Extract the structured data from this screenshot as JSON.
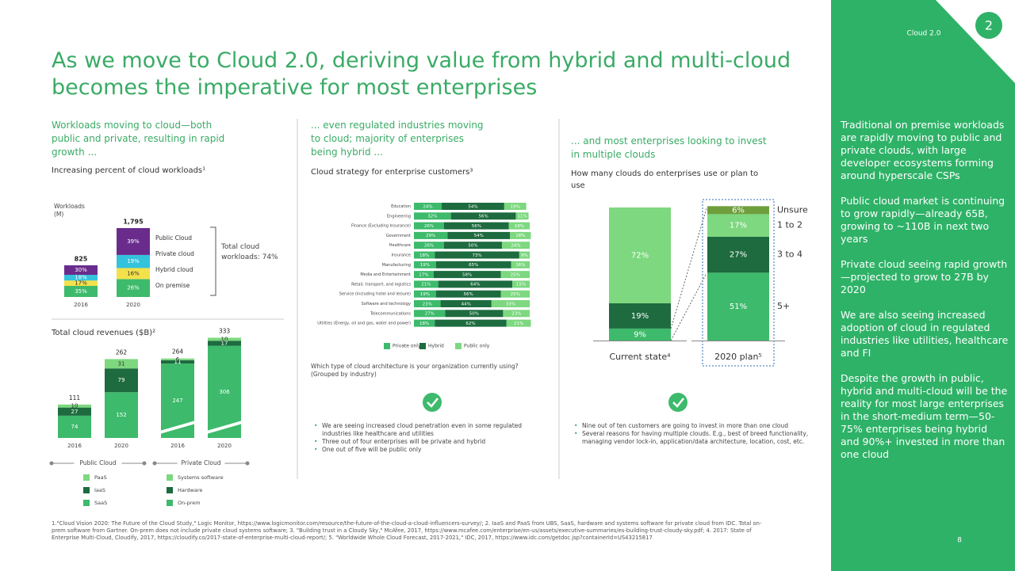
{
  "header": {
    "title": "As we move to Cloud 2.0, deriving value from hybrid and multi-cloud becomes the imperative for most enterprises",
    "section": "Cloud 2.0",
    "badge": "2",
    "page_number": "8"
  },
  "panel1": {
    "heading": "Workloads moving to cloud—both public and private, resulting in rapid growth ...",
    "subheading": "Increasing percent of cloud workloads¹",
    "workloads": {
      "axis_label": "Workloads (M)",
      "categories": [
        "2016",
        "2020"
      ],
      "totals": [
        825,
        1795
      ],
      "total_labels": [
        "825",
        "1,795"
      ],
      "series": [
        {
          "name": "On premise",
          "color": "#3dba6b",
          "values": [
            35,
            26
          ],
          "value_labels": [
            "35%",
            "26%"
          ]
        },
        {
          "name": "Hybrid cloud",
          "color": "#f3e14b",
          "values": [
            17,
            16
          ],
          "value_labels": [
            "17%",
            "16%"
          ]
        },
        {
          "name": "Private cloud",
          "color": "#33c3dc",
          "values": [
            18,
            19
          ],
          "value_labels": [
            "18%",
            "19%"
          ]
        },
        {
          "name": "Public Cloud",
          "color": "#6a2c8c",
          "values": [
            30,
            39
          ],
          "value_labels": [
            "30%",
            "39%"
          ]
        }
      ],
      "bracket_label": "Total cloud workloads: 74%"
    },
    "revenues": {
      "title": "Total cloud revenues ($B)²",
      "groups": [
        {
          "name": "Public Cloud",
          "categories": [
            "2016",
            "2020"
          ],
          "totals": [
            111,
            262
          ],
          "series": [
            {
              "name": "SaaS",
              "color": "#3dba6b",
              "values": [
                74,
                152
              ]
            },
            {
              "name": "IaaS",
              "color": "#1d6b3f",
              "values": [
                27,
                79
              ]
            },
            {
              "name": "PaaS",
              "color": "#7dd87f",
              "values": [
                10,
                31
              ]
            }
          ]
        },
        {
          "name": "Private Cloud",
          "categories": [
            "2016",
            "2020"
          ],
          "totals": [
            264,
            333
          ],
          "series": [
            {
              "name": "On-prem",
              "color": "#3dba6b",
              "values": [
                247,
                306
              ]
            },
            {
              "name": "Hardware",
              "color": "#1d6b3f",
              "values": [
                11,
                17
              ]
            },
            {
              "name": "Systems software",
              "color": "#7dd87f",
              "values": [
                6,
                10
              ]
            }
          ]
        }
      ]
    }
  },
  "panel2": {
    "heading": "... even regulated industries moving to cloud; majority of enterprises being hybrid ...",
    "subheading": "Cloud strategy for enterprise customers³",
    "chart": {
      "categories": [
        "Education",
        "Engineering",
        "Finance (Excluding Insurance)",
        "Government",
        "Healthcare",
        "Insurance",
        "Manufacturing",
        "Media and Entertainment",
        "Retail, transport, and logistics",
        "Service (including hotel and leisure)",
        "Software and technology",
        "Telecommunications",
        "Utilities (Energy, oil and gas, water and power)"
      ],
      "series": [
        {
          "name": "Private only",
          "color": "#3dba6b",
          "values": [
            24,
            32,
            26,
            29,
            26,
            18,
            19,
            17,
            21,
            19,
            23,
            27,
            18
          ],
          "value_labels": [
            "24%",
            "32%",
            "26%",
            "29%",
            "26%",
            "18%",
            "19%",
            "17%",
            "21%",
            "19%",
            "23%",
            "27%",
            "18%"
          ]
        },
        {
          "name": "Hybrid",
          "color": "#1d6b3f",
          "values": [
            54,
            56,
            56,
            54,
            50,
            73,
            65,
            58,
            64,
            56,
            44,
            50,
            62
          ],
          "value_labels": [
            "54%",
            "56%",
            "56%",
            "54%",
            "50%",
            "73%",
            "65%",
            "58%",
            "64%",
            "56%",
            "44%",
            "50%",
            "62%"
          ]
        },
        {
          "name": "Public only",
          "color": "#7dd87f",
          "values": [
            19,
            11,
            18,
            18,
            24,
            9,
            16,
            25,
            15,
            25,
            33,
            23,
            21
          ],
          "value_labels": [
            "19%",
            "11%",
            "18%",
            "18%",
            "24%",
            "9%",
            "16%",
            "25%",
            "15%",
            "25%",
            "33%",
            "23%",
            "21%"
          ]
        }
      ]
    },
    "question": "Which type of cloud architecture is your organization currently using? (Grouped by industry)",
    "bullets": [
      "We are seeing increased cloud penetration even in some regulated industries like healthcare and utilities",
      "Three out of four enterprises will be private and hybrid",
      "One out of five will be public only"
    ]
  },
  "panel3": {
    "heading": "... and most enterprises looking to invest in multiple clouds",
    "subheading": "How many clouds do enterprises use or plan to use",
    "chart": {
      "categories": [
        "Current state⁴",
        "2020 plan⁵"
      ],
      "series": [
        {
          "name": "5+",
          "color": "#3dba6b",
          "values": [
            9,
            51
          ],
          "value_labels": [
            "9%",
            "51%"
          ]
        },
        {
          "name": "3 to 4",
          "color": "#1d6b3f",
          "values": [
            19,
            27
          ],
          "value_labels": [
            "19%",
            "27%"
          ]
        },
        {
          "name": "1 to 2",
          "color": "#7dd87f",
          "values": [
            72,
            17
          ],
          "value_labels": [
            "72%",
            "17%"
          ]
        },
        {
          "name": "Unsure",
          "color": "#6f9e3c",
          "values": [
            null,
            6
          ],
          "value_labels": [
            null,
            "6%"
          ]
        }
      ]
    },
    "bullets": [
      "Nine out of ten customers are going to invest in more than one cloud",
      "Several reasons for having multiple clouds. E.g., best of breed functionality, managing vendor lock-in, application/data architecture, location, cost, etc."
    ]
  },
  "sidebar": {
    "paragraphs": [
      "Traditional on premise workloads are rapidly moving to public and private clouds, with large developer ecosystems forming around hyperscale CSPs",
      "Public cloud market is continuing to grow rapidly—already 65B, growing to ~110B in next two years",
      "Private cloud seeing rapid growth—projected to grow to 27B by 2020",
      "We are also seeing increased adoption of cloud in regulated industries like utilities, healthcare and FI",
      "Despite the growth in public, hybrid and multi-cloud will be the reality for most large enterprises in the short-medium term—50-75% enterprises being hybrid and 90%+ invested in more than one cloud"
    ]
  },
  "footnote": "1.\"Cloud Vision 2020: The Future of the Cloud Study,\" Logic Monitor, https://www.logicmonitor.com/resource/the-future-of-the-cloud-a-cloud-influencers-survey/; 2. IaaS and PaaS from UBS, SaaS, hardware and systems software for private cloud from IDC. Total on-prem software from Gartner. On-prem does not include private cloud systems software; 3. \"Building trust in a Cloudy Sky,\" McAfee, 2017, https://www.mcafee.com/enterprise/en-us/assets/executive-summaries/es-building-trust-cloudy-sky.pdf; 4. 2017: State of Enterprise Multi-Cloud, Cloudify, 2017, https://cloudify.co/2017-state-of-enterprise-multi-cloud-report/; 5. \"Worldwide Whole Cloud Forecast, 2017-2021,\" IDC, 2017, https://www.idc.com/getdoc.jsp?containerId=US43215817"
}
